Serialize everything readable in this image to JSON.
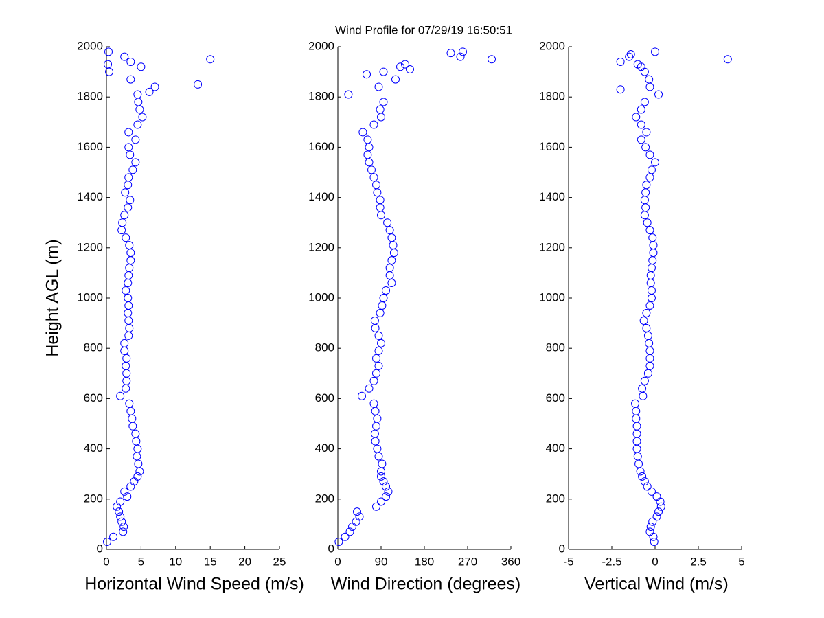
{
  "title": "Wind Profile for  07/29/19 16:50:51",
  "chart_data": [
    {
      "type": "scatter",
      "xlabel": "Horizontal Wind Speed (m/s)",
      "ylabel": "Height AGL (m)",
      "xlim": [
        0,
        25
      ],
      "xticks": [
        0,
        5,
        10,
        15,
        20,
        25
      ],
      "ylim": [
        0,
        2000
      ],
      "yticks": [
        0,
        200,
        400,
        600,
        800,
        1000,
        1200,
        1400,
        1600,
        1800,
        2000
      ],
      "series": [
        {
          "color": "#0000ff",
          "x": [
            0.1,
            1,
            2.4,
            2.5,
            2.2,
            2,
            1.8,
            1.5,
            2,
            3,
            2.6,
            3.5,
            4,
            4.5,
            4.8,
            4.6,
            4.4,
            4.5,
            4.3,
            4.2,
            3.8,
            3.7,
            3.5,
            3.3,
            2,
            2.8,
            2.9,
            2.9,
            2.8,
            2.9,
            2.6,
            2.6,
            3.2,
            3.3,
            3.2,
            3.1,
            3.2,
            3.1,
            2.8,
            3.1,
            3.2,
            3.3,
            3.5,
            3.5,
            3.3,
            2.8,
            2.2,
            2.3,
            2.6,
            3.1,
            3.4,
            2.7,
            3.1,
            3.2,
            3.8,
            4.2,
            3.4,
            3.2,
            4.2,
            3.2,
            4.5,
            5.2,
            4.8,
            4.6,
            4.5,
            7,
            3.5,
            0.4,
            0.2,
            2.6,
            0.3,
            15,
            13.2,
            6.2,
            3.5,
            5
          ],
          "y": [
            30,
            50,
            70,
            90,
            110,
            130,
            150,
            170,
            190,
            210,
            230,
            250,
            270,
            290,
            310,
            340,
            370,
            400,
            430,
            460,
            490,
            520,
            550,
            580,
            610,
            640,
            670,
            700,
            730,
            760,
            790,
            820,
            850,
            880,
            910,
            940,
            970,
            1000,
            1030,
            1060,
            1090,
            1120,
            1150,
            1180,
            1210,
            1240,
            1270,
            1300,
            1330,
            1360,
            1390,
            1420,
            1450,
            1480,
            1510,
            1540,
            1570,
            1600,
            1630,
            1660,
            1690,
            1720,
            1750,
            1780,
            1810,
            1840,
            1870,
            1900,
            1930,
            1960,
            1980,
            1950,
            1850,
            1820,
            1940,
            1920
          ]
        }
      ]
    },
    {
      "type": "scatter",
      "xlabel": "Wind Direction (degrees)",
      "xlim": [
        0,
        360
      ],
      "xticks": [
        0,
        90,
        180,
        270,
        360
      ],
      "ylim": [
        0,
        2000
      ],
      "yticks": [
        0,
        200,
        400,
        600,
        800,
        1000,
        1200,
        1400,
        1600,
        1800,
        2000
      ],
      "series": [
        {
          "color": "#0000ff",
          "x": [
            2,
            15,
            25,
            30,
            38,
            45,
            40,
            80,
            90,
            100,
            105,
            100,
            95,
            90,
            90,
            92,
            85,
            82,
            78,
            77,
            80,
            82,
            78,
            75,
            50,
            65,
            75,
            80,
            85,
            80,
            85,
            90,
            85,
            78,
            77,
            88,
            92,
            95,
            100,
            112,
            108,
            108,
            112,
            117,
            115,
            112,
            108,
            103,
            90,
            88,
            88,
            82,
            80,
            75,
            70,
            65,
            62,
            65,
            62,
            52,
            75,
            90,
            88,
            95,
            22,
            85,
            120,
            95,
            140,
            255,
            260,
            320,
            235,
            150,
            130,
            60
          ],
          "y": [
            30,
            50,
            70,
            90,
            110,
            130,
            150,
            170,
            190,
            210,
            230,
            250,
            270,
            290,
            310,
            340,
            370,
            400,
            430,
            460,
            490,
            520,
            550,
            580,
            610,
            640,
            670,
            700,
            730,
            760,
            790,
            820,
            850,
            880,
            910,
            940,
            970,
            1000,
            1030,
            1060,
            1090,
            1120,
            1150,
            1180,
            1210,
            1240,
            1270,
            1300,
            1330,
            1360,
            1390,
            1420,
            1450,
            1480,
            1510,
            1540,
            1570,
            1600,
            1630,
            1660,
            1690,
            1720,
            1750,
            1780,
            1810,
            1840,
            1870,
            1900,
            1930,
            1960,
            1980,
            1950,
            1975,
            1910,
            1920,
            1890
          ]
        }
      ]
    },
    {
      "type": "scatter",
      "xlabel": "Vertical Wind (m/s)",
      "xlim": [
        -5,
        5
      ],
      "xticks": [
        -5,
        -2.5,
        0,
        2.5,
        5
      ],
      "ylim": [
        0,
        2000
      ],
      "yticks": [
        0,
        200,
        400,
        600,
        800,
        1000,
        1200,
        1400,
        1600,
        1800,
        2000
      ],
      "series": [
        {
          "color": "#0000ff",
          "x": [
            -0.05,
            -0.1,
            -0.3,
            -0.25,
            -0.15,
            0.1,
            0.2,
            0.35,
            0.3,
            0.1,
            -0.2,
            -0.45,
            -0.6,
            -0.75,
            -0.85,
            -0.95,
            -1,
            -1.05,
            -1.05,
            -1.05,
            -1.05,
            -1.1,
            -1.1,
            -1.15,
            -0.7,
            -0.75,
            -0.6,
            -0.4,
            -0.3,
            -0.3,
            -0.3,
            -0.35,
            -0.4,
            -0.5,
            -0.65,
            -0.5,
            -0.3,
            -0.2,
            -0.2,
            -0.25,
            -0.25,
            -0.2,
            -0.15,
            -0.1,
            -0.1,
            -0.15,
            -0.3,
            -0.45,
            -0.6,
            -0.55,
            -0.6,
            -0.55,
            -0.5,
            -0.3,
            -0.2,
            0,
            -0.3,
            -0.55,
            -0.8,
            -0.5,
            -0.8,
            -1.1,
            -0.8,
            -0.6,
            0.2,
            -0.3,
            -0.35,
            -0.6,
            -1,
            -1.5,
            0,
            4.2,
            -2,
            -2,
            -1.4,
            -0.8
          ],
          "y": [
            30,
            50,
            70,
            90,
            110,
            130,
            150,
            170,
            190,
            210,
            230,
            250,
            270,
            290,
            310,
            340,
            370,
            400,
            430,
            460,
            490,
            520,
            550,
            580,
            610,
            640,
            670,
            700,
            730,
            760,
            790,
            820,
            850,
            880,
            910,
            940,
            970,
            1000,
            1030,
            1060,
            1090,
            1120,
            1150,
            1180,
            1210,
            1240,
            1270,
            1300,
            1330,
            1360,
            1390,
            1420,
            1450,
            1480,
            1510,
            1540,
            1570,
            1600,
            1630,
            1660,
            1690,
            1720,
            1750,
            1780,
            1810,
            1840,
            1870,
            1900,
            1930,
            1960,
            1980,
            1950,
            1940,
            1830,
            1970,
            1920
          ]
        }
      ]
    }
  ]
}
